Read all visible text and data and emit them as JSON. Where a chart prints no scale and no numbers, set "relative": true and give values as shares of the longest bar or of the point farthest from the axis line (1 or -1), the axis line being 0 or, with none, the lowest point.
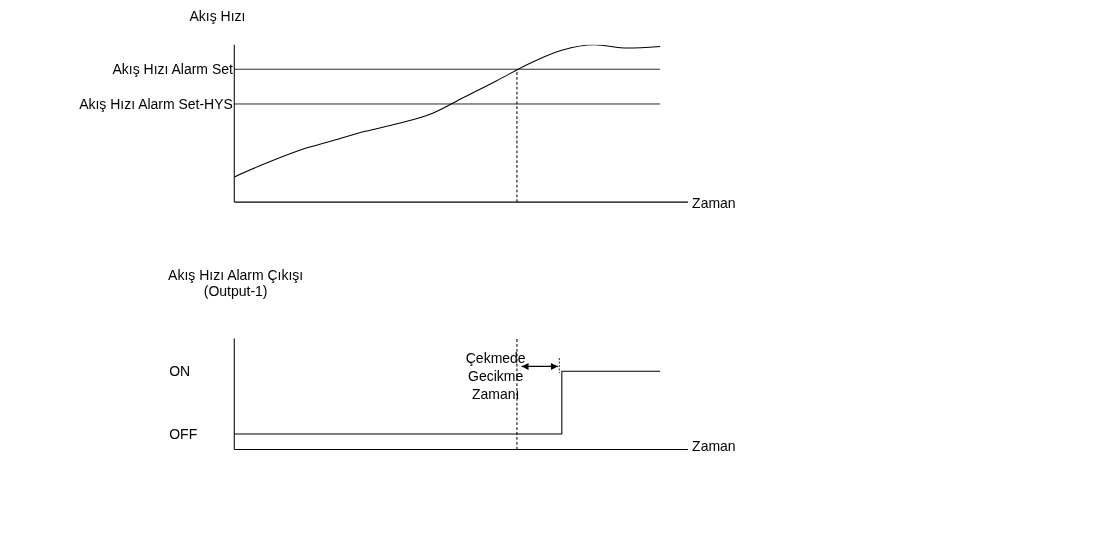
{
  "chart_data": [
    {
      "type": "line",
      "ylabel": "Akış Hızı",
      "xlabel": "Zaman",
      "relative": true,
      "categories": [
        null,
        null,
        null,
        null,
        null,
        null,
        null,
        null,
        null,
        null,
        null,
        null,
        null,
        null
      ],
      "series": [
        {
          "color": "#000000",
          "values": [
            0.16,
            0.25,
            0.33,
            0.39,
            0.45,
            0.5,
            0.56,
            0.665,
            0.77,
            0.88,
            0.965,
            1.0,
            0.98,
            0.99
          ]
        }
      ],
      "ref_lines": [
        {
          "axis": "y",
          "value": 0.845,
          "label": "Akış Hızı Alarm Set",
          "color": "#000000"
        },
        {
          "axis": "y",
          "value": 0.624,
          "label": "Akış Hızı Alarm Set-HYS",
          "color": "#000000"
        }
      ],
      "legend": false,
      "grid": false
    },
    {
      "type": "step",
      "ylabel": "Akış Hızı Alarm Çıkışı (Output-1)",
      "xlabel": "Zaman",
      "categories": [
        null,
        null,
        null,
        null,
        null,
        null,
        null,
        null,
        null,
        null,
        null,
        null,
        null,
        null
      ],
      "relative": true,
      "series": [
        {
          "color": "#000000",
          "values": [
            0.2,
            0.2,
            0.2,
            0.2,
            0.2,
            0.2,
            0.2,
            0.2,
            0.2,
            0.2,
            1,
            1,
            1,
            1
          ]
        }
      ],
      "annotations": [
        "Çekmede Gecikme Zamanı",
        "ON",
        "OFF"
      ],
      "legend": false,
      "grid": false
    }
  ]
}
